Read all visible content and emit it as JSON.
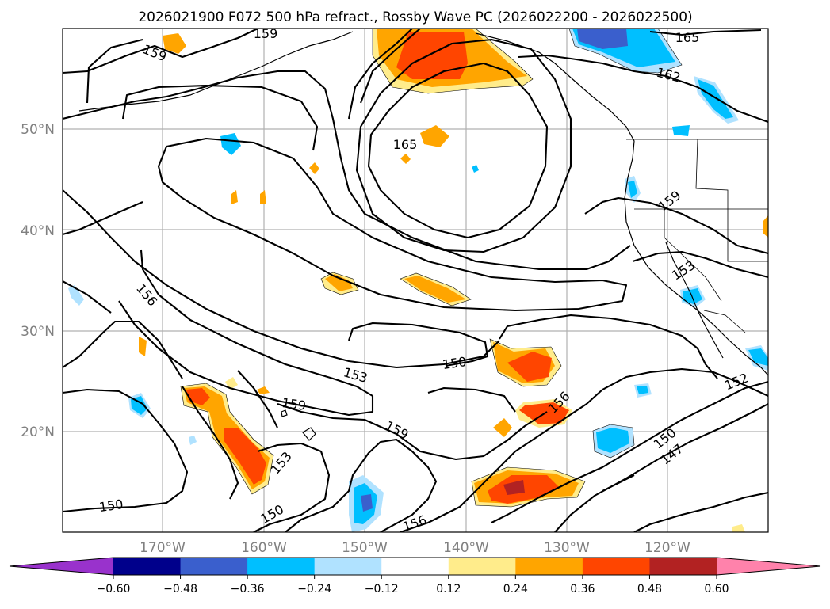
{
  "title": "2026021900 F072 500 hPa refract., Rossby Wave PC (2026022200 - 2026022500)",
  "lat_labels": [
    "50°N",
    "40°N",
    "30°N",
    "20°N"
  ],
  "lon_labels": [
    "170°W",
    "160°W",
    "150°W",
    "140°W",
    "130°W",
    "120°W"
  ],
  "contour_labels": [
    "159",
    "159",
    "165",
    "162",
    "165",
    "159",
    "156",
    "153",
    "153",
    "150",
    "159",
    "159",
    "156",
    "153",
    "150",
    "150",
    "156",
    "152",
    "150",
    "147"
  ],
  "colorbar": {
    "colors": [
      "#9932cc",
      "#00008b",
      "#3a5fcd",
      "#00bfff",
      "#b0e2ff",
      "#ffffff",
      "#ffec8b",
      "#ffa500",
      "#ff4500",
      "#b22222",
      "#ff82ab"
    ],
    "tick_labels": [
      "−0.60",
      "−0.48",
      "−0.36",
      "−0.24",
      "−0.12",
      "0.12",
      "0.24",
      "0.36",
      "0.48",
      "0.60"
    ]
  }
}
